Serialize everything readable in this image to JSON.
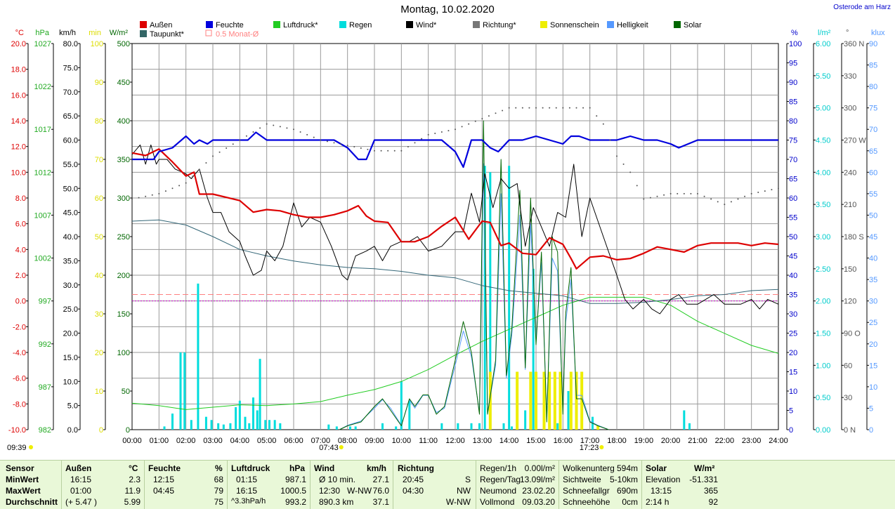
{
  "title": "Montag, 10.02.2020",
  "location": "Osterode am Harz",
  "legend": [
    {
      "label": "Außen",
      "color": "#dd0000"
    },
    {
      "label": "Taupunkt*",
      "color": "#336666"
    },
    {
      "label": "Feuchte",
      "color": "#0000dd"
    },
    {
      "label": "0.5 Monat-Ø",
      "color": "#ff8080",
      "hollow": true
    },
    {
      "label": "Luftdruck*",
      "color": "#22cc22"
    },
    {
      "label": "Regen",
      "color": "#00dddd"
    },
    {
      "label": "Wind*",
      "color": "#000000"
    },
    {
      "label": "Richtung*",
      "color": "#777777"
    },
    {
      "label": "Sonnenschein",
      "color": "#eeee00"
    },
    {
      "label": "Helligkeit",
      "color": "#5599ff"
    },
    {
      "label": "Solar",
      "color": "#006600"
    }
  ],
  "axes": {
    "temp": {
      "unit": "°C",
      "color": "#dd0000",
      "ticks": [
        "20.0",
        "18.0",
        "16.0",
        "14.0",
        "12.0",
        "10.0",
        "8.0",
        "6.0",
        "4.0",
        "2.0",
        "0.0",
        "-2.0",
        "-4.0",
        "-6.0",
        "-8.0",
        "-10.0"
      ]
    },
    "press": {
      "unit": "hPa",
      "color": "#22aa22",
      "ticks": [
        "1027",
        "1022",
        "1017",
        "1012",
        "1007",
        "1002",
        "997",
        "992",
        "987",
        "982"
      ]
    },
    "wind": {
      "unit": "km/h",
      "color": "#000000",
      "ticks": [
        "80.0",
        "75.0",
        "70.0",
        "65.0",
        "60.0",
        "55.0",
        "50.0",
        "45.0",
        "40.0",
        "35.0",
        "30.0",
        "25.0",
        "20.0",
        "15.0",
        "10.0",
        "5.0",
        "0.0"
      ]
    },
    "min": {
      "unit": "min",
      "color": "#dddd00",
      "ticks": [
        "100",
        "90",
        "80",
        "70",
        "60",
        "50",
        "40",
        "30",
        "20",
        "10",
        "0"
      ]
    },
    "solar": {
      "unit": "W/m²",
      "color": "#006600",
      "ticks": [
        "500",
        "450",
        "400",
        "350",
        "300",
        "250",
        "200",
        "150",
        "100",
        "50",
        "0"
      ]
    },
    "hum": {
      "unit": "%",
      "color": "#0000cc",
      "ticks": [
        "100",
        "95",
        "90",
        "85",
        "80",
        "75",
        "70",
        "65",
        "60",
        "55",
        "50",
        "45",
        "40",
        "35",
        "30",
        "25",
        "20",
        "15",
        "10",
        "5",
        "0"
      ]
    },
    "rain": {
      "unit": "l/m²",
      "color": "#00cccc",
      "ticks": [
        "6.00",
        "5.50",
        "5.00",
        "4.50",
        "4.00",
        "3.50",
        "3.00",
        "2.50",
        "2.00",
        "1.50",
        "1.00",
        "0.50",
        "0.00"
      ]
    },
    "dir": {
      "unit": "°",
      "color": "#555555",
      "ticks": [
        "360 N",
        "330",
        "300",
        "270 W",
        "240",
        "210",
        "180 S",
        "150",
        "120",
        "90 O",
        "60",
        "30",
        "0 N"
      ]
    },
    "lux": {
      "unit": "klux",
      "color": "#5599ff",
      "ticks": [
        "90",
        "85",
        "80",
        "75",
        "70",
        "65",
        "60",
        "55",
        "50",
        "45",
        "40",
        "35",
        "30",
        "25",
        "20",
        "15",
        "10",
        "5",
        "0"
      ]
    }
  },
  "x_labels": [
    "00:00",
    "01:00",
    "02:00",
    "03:00",
    "04:00",
    "05:00",
    "06:00",
    "07:00",
    "08:00",
    "09:00",
    "10:00",
    "11:00",
    "12:00",
    "13:00",
    "14:00",
    "15:00",
    "16:00",
    "17:00",
    "18:00",
    "19:00",
    "20:00",
    "21:00",
    "22:00",
    "23:00",
    "24:00"
  ],
  "events": {
    "moonrise": "09:39",
    "sunrise": "07:43",
    "sunset": "17:23"
  },
  "chart_data": {
    "type": "line",
    "x_unit": "hour",
    "series": [
      {
        "name": "Außen",
        "axis": "temp",
        "x": [
          0,
          0.5,
          1,
          1.5,
          2,
          2.3,
          2.5,
          3,
          4,
          4.5,
          5,
          5.5,
          6,
          6.5,
          7,
          7.5,
          8,
          8.4,
          8.7,
          9,
          9.5,
          10,
          10.5,
          11,
          11.5,
          12,
          12.5,
          13,
          13.3,
          13.7,
          14,
          14.5,
          15,
          15.5,
          16,
          16.3,
          16.5,
          17,
          17.5,
          18,
          18.5,
          19,
          19.5,
          20,
          20.5,
          21,
          21.5,
          22,
          22.5,
          23,
          23.5,
          24
        ],
        "y": [
          11.5,
          11.3,
          11.8,
          10.8,
          9.7,
          10.0,
          8.3,
          8.3,
          7.8,
          6.9,
          7.1,
          7.0,
          6.7,
          6.5,
          6.5,
          6.7,
          7.0,
          7.4,
          6.6,
          6.2,
          6.1,
          4.6,
          4.6,
          5.0,
          5.8,
          6.5,
          4.8,
          6.2,
          6.1,
          4.3,
          4.5,
          3.7,
          3.6,
          4.9,
          4.4,
          3.3,
          2.5,
          3.4,
          3.5,
          3.2,
          3.3,
          3.7,
          4.2,
          4.0,
          3.8,
          4.3,
          4.5,
          4.5,
          4.5,
          4.3,
          4.5,
          4.4
        ]
      },
      {
        "name": "Taupunkt*",
        "axis": "temp",
        "x": [
          0,
          1,
          2,
          3,
          4,
          5,
          6,
          7,
          8,
          9,
          10,
          11,
          12,
          13,
          14,
          15,
          16,
          17,
          18,
          19,
          20,
          21,
          22,
          23,
          24
        ],
        "y": [
          6.2,
          6.3,
          5.9,
          5.0,
          4.0,
          3.5,
          3.1,
          2.8,
          2.6,
          2.5,
          2.3,
          2.0,
          1.8,
          1.2,
          0.8,
          0.6,
          0.4,
          -0.2,
          -0.2,
          -0.1,
          0.1,
          0.4,
          0.5,
          0.8,
          0.9
        ]
      },
      {
        "name": "Feuchte",
        "axis": "hum",
        "x": [
          0,
          0.4,
          0.8,
          1,
          1.5,
          2,
          2.3,
          2.5,
          2.8,
          3,
          3.5,
          4,
          4.3,
          4.6,
          5,
          5.5,
          6,
          7,
          7.5,
          8,
          8.4,
          8.7,
          9,
          10,
          11,
          11.5,
          12,
          12.3,
          12.6,
          13,
          13.3,
          13.6,
          14,
          14.5,
          15,
          15.5,
          16,
          16.3,
          16.6,
          17,
          17.5,
          18,
          18.5,
          19,
          19.5,
          20,
          20.3,
          21,
          22,
          23,
          24
        ],
        "y": [
          70,
          70,
          70,
          72,
          73,
          76,
          74,
          75,
          74,
          75,
          75,
          75,
          75,
          77,
          75,
          75,
          75,
          75,
          75,
          73,
          70,
          70,
          75,
          75,
          75,
          75,
          72,
          68,
          75,
          75,
          73,
          72,
          75,
          75,
          76,
          75,
          74,
          76,
          76,
          75,
          75,
          75,
          76,
          75,
          75,
          74,
          73,
          75,
          75,
          75,
          75
        ]
      },
      {
        "name": "Luftdruck*",
        "axis": "press",
        "x": [
          0,
          1,
          2,
          3,
          4,
          5,
          6,
          7,
          8,
          9,
          10,
          11,
          12,
          13,
          14,
          15,
          16,
          16.5,
          17,
          17.5,
          18,
          19,
          20,
          21,
          22,
          23,
          24
        ],
        "y": [
          985.3,
          985.0,
          984.5,
          984.8,
          985.1,
          985.0,
          985.2,
          985.5,
          986.3,
          987.0,
          988.0,
          989.5,
          991.3,
          993.0,
          994.5,
          996.0,
          997.5,
          998.0,
          998.5,
          998.5,
          998.5,
          998.5,
          997.5,
          995.5,
          994.0,
          992.5,
          991.5
        ]
      },
      {
        "name": "Wind*",
        "axis": "wind",
        "x": [
          0,
          0.3,
          0.5,
          0.7,
          0.9,
          1,
          1.3,
          1.6,
          2,
          2.2,
          2.5,
          2.8,
          3,
          3.3,
          3.6,
          4,
          4.2,
          4.5,
          4.8,
          5,
          5.3,
          5.6,
          6,
          6.3,
          6.6,
          7,
          7.4,
          7.8,
          8,
          8.3,
          8.7,
          9,
          9.3,
          9.6,
          10,
          10.3,
          10.6,
          11,
          11.5,
          12,
          12.3,
          12.6,
          12.9,
          13.1,
          13.4,
          13.7,
          14,
          14.3,
          14.6,
          14.9,
          15.2,
          15.5,
          15.8,
          16.1,
          16.4,
          16.7,
          17,
          17.5,
          18,
          18.3,
          18.6,
          19,
          19.3,
          19.6,
          20,
          20.3,
          20.6,
          21,
          21.3,
          21.6,
          22,
          22.3,
          22.6,
          23,
          23.3,
          23.6,
          24
        ],
        "y": [
          57,
          59,
          55,
          59,
          55,
          56,
          56,
          54,
          53,
          52,
          54,
          48,
          45,
          45,
          41,
          39,
          36,
          32,
          33,
          37,
          35,
          38,
          47,
          42,
          44,
          43,
          38,
          32,
          31,
          36,
          37,
          38,
          35,
          38,
          39,
          39,
          40,
          37,
          38,
          41,
          41,
          49,
          43,
          53,
          46,
          52,
          50,
          51,
          38,
          46,
          42,
          38,
          45,
          44,
          55,
          40,
          48,
          40,
          32,
          27,
          25,
          27,
          25,
          24,
          27,
          28,
          26,
          26,
          27,
          28,
          26,
          26,
          26,
          27,
          25,
          27,
          26
        ]
      },
      {
        "name": "Richtung*",
        "axis": "dir",
        "x": [
          0,
          1,
          2,
          3,
          4,
          5,
          6,
          7,
          8,
          9,
          10,
          11,
          12,
          13,
          14,
          15,
          16,
          17,
          17.5,
          18,
          18.5,
          19,
          20,
          21,
          22,
          23,
          24
        ],
        "y": [
          215,
          220,
          230,
          255,
          270,
          285,
          280,
          270,
          265,
          260,
          260,
          275,
          280,
          290,
          300,
          300,
          300,
          300,
          285,
          255,
          240,
          215,
          220,
          220,
          210,
          220,
          225
        ]
      },
      {
        "name": "Solar",
        "axis": "solar",
        "x": [
          7.7,
          8,
          8.5,
          9,
          9.3,
          9.6,
          10,
          10.3,
          10.5,
          10.8,
          11,
          11.3,
          11.6,
          12,
          12.3,
          12.6,
          12.9,
          13.05,
          13.2,
          13.5,
          13.7,
          13.9,
          14.1,
          14.4,
          14.6,
          14.8,
          15.0,
          15.2,
          15.4,
          15.6,
          15.8,
          16.0,
          16.1,
          16.3,
          16.5,
          16.7,
          17,
          17.3,
          17.7
        ],
        "y": [
          0,
          5,
          10,
          30,
          40,
          25,
          5,
          40,
          30,
          45,
          45,
          20,
          30,
          90,
          140,
          100,
          20,
          400,
          20,
          90,
          350,
          70,
          130,
          310,
          80,
          300,
          110,
          230,
          10,
          250,
          230,
          20,
          150,
          210,
          40,
          40,
          10,
          5,
          0
        ]
      },
      {
        "name": "Helligkeit",
        "axis": "lux",
        "x": [
          7.7,
          8,
          8.5,
          9,
          9.3,
          9.6,
          10,
          10.3,
          10.5,
          10.8,
          11,
          11.3,
          11.6,
          12,
          12.3,
          12.6,
          12.9,
          13.05,
          13.2,
          13.5,
          13.7,
          13.9,
          14.1,
          14.4,
          14.6,
          14.8,
          15.0,
          15.2,
          15.4,
          15.6,
          15.8,
          16.0,
          16.1,
          16.3,
          16.5,
          16.7,
          17,
          17.3,
          17.7
        ],
        "y": [
          0,
          1,
          2,
          5,
          7,
          5,
          1,
          7,
          5,
          8,
          8,
          4,
          5,
          15,
          23,
          17,
          4,
          62,
          4,
          15,
          55,
          12,
          22,
          50,
          14,
          48,
          21,
          39,
          3,
          40,
          37,
          5,
          25,
          35,
          8,
          8,
          2,
          1,
          0
        ]
      }
    ],
    "rain_bars": {
      "axis": "rain",
      "x": [
        1.2,
        1.5,
        1.8,
        1.95,
        2.2,
        2.45,
        2.75,
        2.95,
        3.2,
        3.4,
        3.65,
        3.85,
        4.0,
        4.2,
        4.35,
        4.5,
        4.65,
        4.75,
        4.95,
        5.1,
        5.3,
        5.5,
        7.3,
        7.6,
        8.1,
        8.3,
        9.3,
        9.8,
        10.0,
        10.3,
        11.5,
        12.1,
        12.6,
        12.9,
        13.1,
        13.3,
        13.8,
        14.0,
        14.1,
        14.6,
        14.9,
        15.8,
        16.2,
        16.3,
        16.7,
        17.1,
        17.3,
        20.5,
        20.7
      ],
      "y": [
        0.05,
        0.25,
        1.2,
        1.2,
        0.15,
        2.27,
        0.2,
        0.15,
        0.1,
        0.08,
        0.1,
        0.35,
        0.45,
        0.2,
        0.1,
        0.5,
        0.3,
        1.1,
        0.15,
        0.15,
        0.15,
        0.1,
        0.08,
        0.05,
        0.05,
        0.05,
        0.1,
        0.05,
        0.75,
        0.45,
        0.1,
        0.1,
        0.1,
        0.1,
        4.1,
        4.0,
        0.1,
        4.1,
        0.05,
        0.3,
        2.5,
        0.1,
        0.6,
        0.1,
        0.55,
        0.2,
        0.05,
        0.3,
        0.1
      ]
    },
    "sun_bars": {
      "axis": "min",
      "x": [
        13.3,
        14.3,
        14.8,
        15.0,
        15.3,
        15.5,
        15.7,
        15.9,
        16.3,
        16.5,
        16.7,
        17.3
      ],
      "y": [
        15,
        15,
        15,
        15,
        15,
        15,
        15,
        15,
        15,
        15,
        15,
        1
      ]
    },
    "monthly_avg_temp": 0.5,
    "reference_temp": 0.0,
    "xlim": [
      0,
      24
    ],
    "grid": true
  },
  "footer": {
    "sensor": {
      "header": "Sensor",
      "min": "MinWert",
      "max": "MaxWert",
      "avg": "Durchschnitt"
    },
    "aussen": {
      "header": "Außen",
      "unit": "°C",
      "min_time": "16:15",
      "min_val": "2.3",
      "max_time": "01:00",
      "max_val": "11.9",
      "avg_extra": "(+ 5.47 )",
      "avg_val": "5.99"
    },
    "feuchte": {
      "header": "Feuchte",
      "unit": "%",
      "min_time": "12:15",
      "min_val": "68",
      "max_time": "04:45",
      "max_val": "79",
      "avg_val": "75"
    },
    "luftdruck": {
      "header": "Luftdruck",
      "unit": "hPa",
      "min_time": "01:15",
      "min_val": "987.1",
      "max_time": "16:15",
      "max_val": "1000.5",
      "avg_extra": "^3.3hPa/h",
      "avg_val": "993.2"
    },
    "wind": {
      "header": "Wind",
      "unit": "km/h",
      "min_label": "Ø 10 min.",
      "min_val": "27.1",
      "max_time": "12:30",
      "max_dir": "W-NW",
      "max_val": "76.0",
      "avg_extra": "890.3 km",
      "avg_val": "37.1"
    },
    "richtung": {
      "header": "Richtung",
      "min_time": "20:45",
      "min_val": "S",
      "max_time": "04:30",
      "max_val": "NW",
      "avg_val": "W-NW"
    },
    "regen": {
      "r1_label": "Regen/1h",
      "r1_val": "0.00l/m²",
      "r2_label": "Regen/Tag",
      "r2_val": "13.09l/m²",
      "r3_label": "Neumond",
      "r3_val": "23.02.20",
      "r4_label": "Vollmond",
      "r4_val": "09.03.20"
    },
    "wolken": {
      "r1_label": "Wolkenunterg",
      "r1_val": "594m",
      "r2_label": "Sichtweite",
      "r2_val": "5-10km",
      "r3_label": "Schneefallgr",
      "r3_val": "690m",
      "r4_label": "Schneehöhe",
      "r4_val": "0cm"
    },
    "solar": {
      "header": "Solar",
      "unit": "W/m²",
      "r1_label": "Elevation",
      "r1_val": "-51.331",
      "r2_label": "13:15",
      "r2_val": "365",
      "r3_label": "2:14 h",
      "r3_val": "92"
    }
  }
}
